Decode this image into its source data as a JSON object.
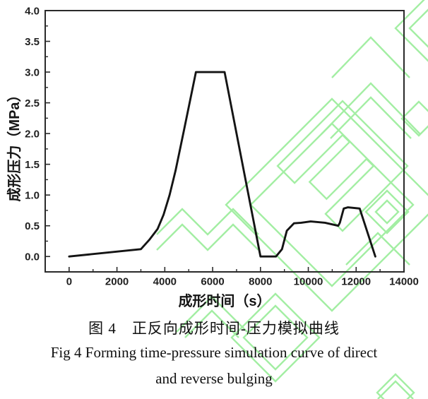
{
  "watermark": {
    "name": "green-lattice-watermark",
    "color": "#8deb8d"
  },
  "chart_data": {
    "type": "line",
    "title": "",
    "xlabel": "成形时间（s）",
    "ylabel": "成形压力（MPa）",
    "xlim": [
      -1000,
      14000
    ],
    "ylim": [
      -0.25,
      4.0
    ],
    "grid": false,
    "legend": "none",
    "x_ticks": [
      [
        0,
        "0"
      ],
      [
        2000,
        "2000"
      ],
      [
        4000,
        "4000"
      ],
      [
        6000,
        "6000"
      ],
      [
        8000,
        "8000"
      ],
      [
        10000,
        "10000"
      ],
      [
        12000,
        "12000"
      ],
      [
        14000,
        "14000"
      ]
    ],
    "x_minor_step": 1000,
    "y_ticks": [
      [
        0.0,
        "0.0"
      ],
      [
        0.5,
        "0.5"
      ],
      [
        1.0,
        "1.0"
      ],
      [
        1.5,
        "1.5"
      ],
      [
        2.0,
        "2.0"
      ],
      [
        2.5,
        "2.5"
      ],
      [
        3.0,
        "3.0"
      ],
      [
        3.5,
        "3.5"
      ],
      [
        4.0,
        "4.0"
      ]
    ],
    "y_minor_step": 0.25,
    "series": [
      {
        "name": "forming pressure simulation curve",
        "color": "#141414",
        "points": [
          [
            0,
            0.0
          ],
          [
            3000,
            0.12
          ],
          [
            3350,
            0.27
          ],
          [
            3700,
            0.45
          ],
          [
            3950,
            0.68
          ],
          [
            4200,
            1.0
          ],
          [
            4450,
            1.4
          ],
          [
            4800,
            2.05
          ],
          [
            5300,
            3.0
          ],
          [
            6500,
            3.0
          ],
          [
            8000,
            0.0
          ],
          [
            8650,
            0.0
          ],
          [
            8900,
            0.12
          ],
          [
            9100,
            0.42
          ],
          [
            9400,
            0.54
          ],
          [
            9700,
            0.55
          ],
          [
            10100,
            0.57
          ],
          [
            10700,
            0.55
          ],
          [
            11250,
            0.5
          ],
          [
            11320,
            0.55
          ],
          [
            11480,
            0.78
          ],
          [
            11650,
            0.8
          ],
          [
            12150,
            0.78
          ],
          [
            12800,
            0.0
          ]
        ]
      }
    ],
    "axis_color": "#2a2a2a",
    "tick_label_color": "#1f1f1f"
  },
  "captions": {
    "chinese": "图 4　正反向成形时间-压力模拟曲线",
    "english_line1": "Fig 4 Forming time-pressure simulation curve of direct",
    "english_line2": "and reverse bulging"
  }
}
